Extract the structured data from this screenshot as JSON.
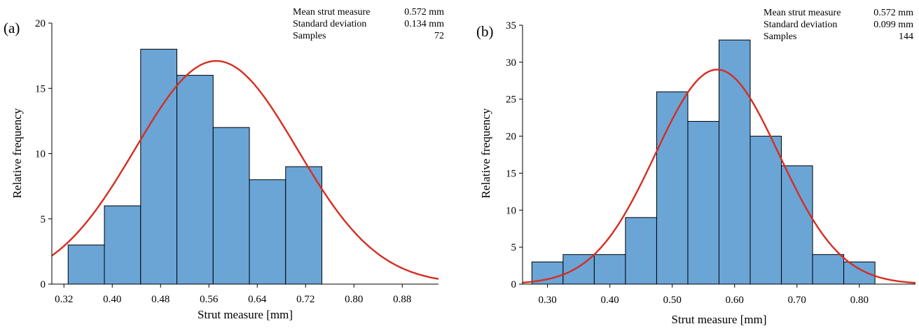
{
  "chart_data": [
    {
      "type": "bar",
      "panel_label": "(a)",
      "title": "",
      "xlabel": "Strut measure [mm]",
      "ylabel": "Relative frequency",
      "xlim": [
        0.3,
        0.94
      ],
      "ylim": [
        0,
        20
      ],
      "xticks": [
        0.32,
        0.4,
        0.48,
        0.56,
        0.64,
        0.72,
        0.8,
        0.88
      ],
      "xtick_labels": [
        "0.32",
        "0.40",
        "0.48",
        "0.56",
        "0.64",
        "0.72",
        "0.80",
        "0.88"
      ],
      "yticks": [
        0,
        5,
        10,
        15,
        20
      ],
      "ytick_labels": [
        "0",
        "5",
        "10",
        "15",
        "20"
      ],
      "bin_edges": [
        0.327,
        0.387,
        0.447,
        0.507,
        0.567,
        0.627,
        0.687,
        0.747
      ],
      "bin_width": 0.06,
      "values": [
        3,
        6,
        18,
        16,
        12,
        8,
        9
      ],
      "fit_curve": {
        "type": "normal",
        "mean": 0.572,
        "sd": 0.134,
        "peak": 17.1
      },
      "stats": [
        {
          "label": "Mean strut measure",
          "value": "0.572 mm"
        },
        {
          "label": "Standard deviation",
          "value": "0.134 mm"
        },
        {
          "label": "Samples",
          "value": "72"
        }
      ],
      "bar_color": "#6aa5d6",
      "curve_color": "#d62d20",
      "grid": false,
      "legend": "none"
    },
    {
      "type": "bar",
      "panel_label": "(b)",
      "title": "",
      "xlabel": "Strut measure [mm]",
      "ylabel": "Relative frequency",
      "xlim": [
        0.26,
        0.89
      ],
      "ylim": [
        0,
        35
      ],
      "xticks": [
        0.3,
        0.4,
        0.5,
        0.6,
        0.7,
        0.8
      ],
      "xtick_labels": [
        "0.30",
        "0.40",
        "0.50",
        "0.60",
        "0.70",
        "0.80"
      ],
      "yticks": [
        0,
        5,
        10,
        15,
        20,
        25,
        30,
        35
      ],
      "ytick_labels": [
        "0",
        "5",
        "10",
        "15",
        "20",
        "25",
        "30",
        "35"
      ],
      "bin_edges": [
        0.275,
        0.325,
        0.375,
        0.425,
        0.475,
        0.525,
        0.575,
        0.625,
        0.675,
        0.725,
        0.775
      ],
      "bin_width": 0.05,
      "values": [
        3,
        4,
        4,
        9,
        26,
        22,
        33,
        20,
        16,
        4,
        3
      ],
      "fit_curve": {
        "type": "normal",
        "mean": 0.572,
        "sd": 0.099,
        "peak": 29.0
      },
      "stats": [
        {
          "label": "Mean strut measure",
          "value": "0.572 mm"
        },
        {
          "label": "Standard deviation",
          "value": "0.099 mm"
        },
        {
          "label": "Samples",
          "value": "144"
        }
      ],
      "bar_color": "#6aa5d6",
      "curve_color": "#d62d20",
      "grid": false,
      "legend": "none"
    }
  ]
}
